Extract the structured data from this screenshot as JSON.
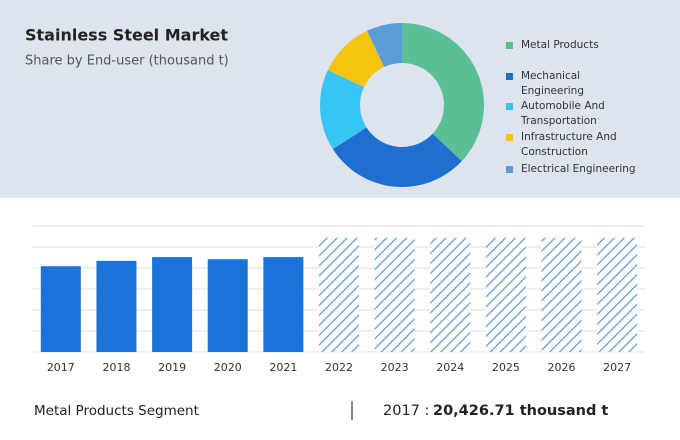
{
  "chart_data": [
    {
      "type": "donut",
      "title": "Stainless Steel Market",
      "subtitle": "Share by End-user (thousand t)",
      "categories": [
        "Metal Products",
        "Mechanical Engineering",
        "Automobile And Transportation",
        "Infrastructure And Construction",
        "Electrical Engineering"
      ],
      "values": [
        37,
        29,
        16,
        11,
        7
      ],
      "colors": [
        "#5bbf96",
        "#1f6fd1",
        "#36c5f4",
        "#f5c40f",
        "#5b9bd8"
      ]
    },
    {
      "type": "bar",
      "categories": [
        "2017",
        "2018",
        "2019",
        "2020",
        "2021",
        "2022",
        "2023",
        "2024",
        "2025",
        "2026",
        "2027"
      ],
      "values": [
        20426.71,
        21700,
        22600,
        22100,
        22600,
        27200,
        27200,
        27200,
        27200,
        27200,
        27200
      ],
      "hatched": [
        false,
        false,
        false,
        false,
        false,
        true,
        true,
        true,
        true,
        true,
        true
      ],
      "color": "#1a73d9",
      "ylim": [
        0,
        30000
      ],
      "yticks": [
        0,
        5000,
        10000,
        15000,
        20000,
        25000,
        30000
      ],
      "grid": true,
      "tick_labels": false
    }
  ],
  "footer": {
    "segment": "Metal Products Segment",
    "year": "2017 :",
    "value": "20,426.71 thousand t"
  }
}
